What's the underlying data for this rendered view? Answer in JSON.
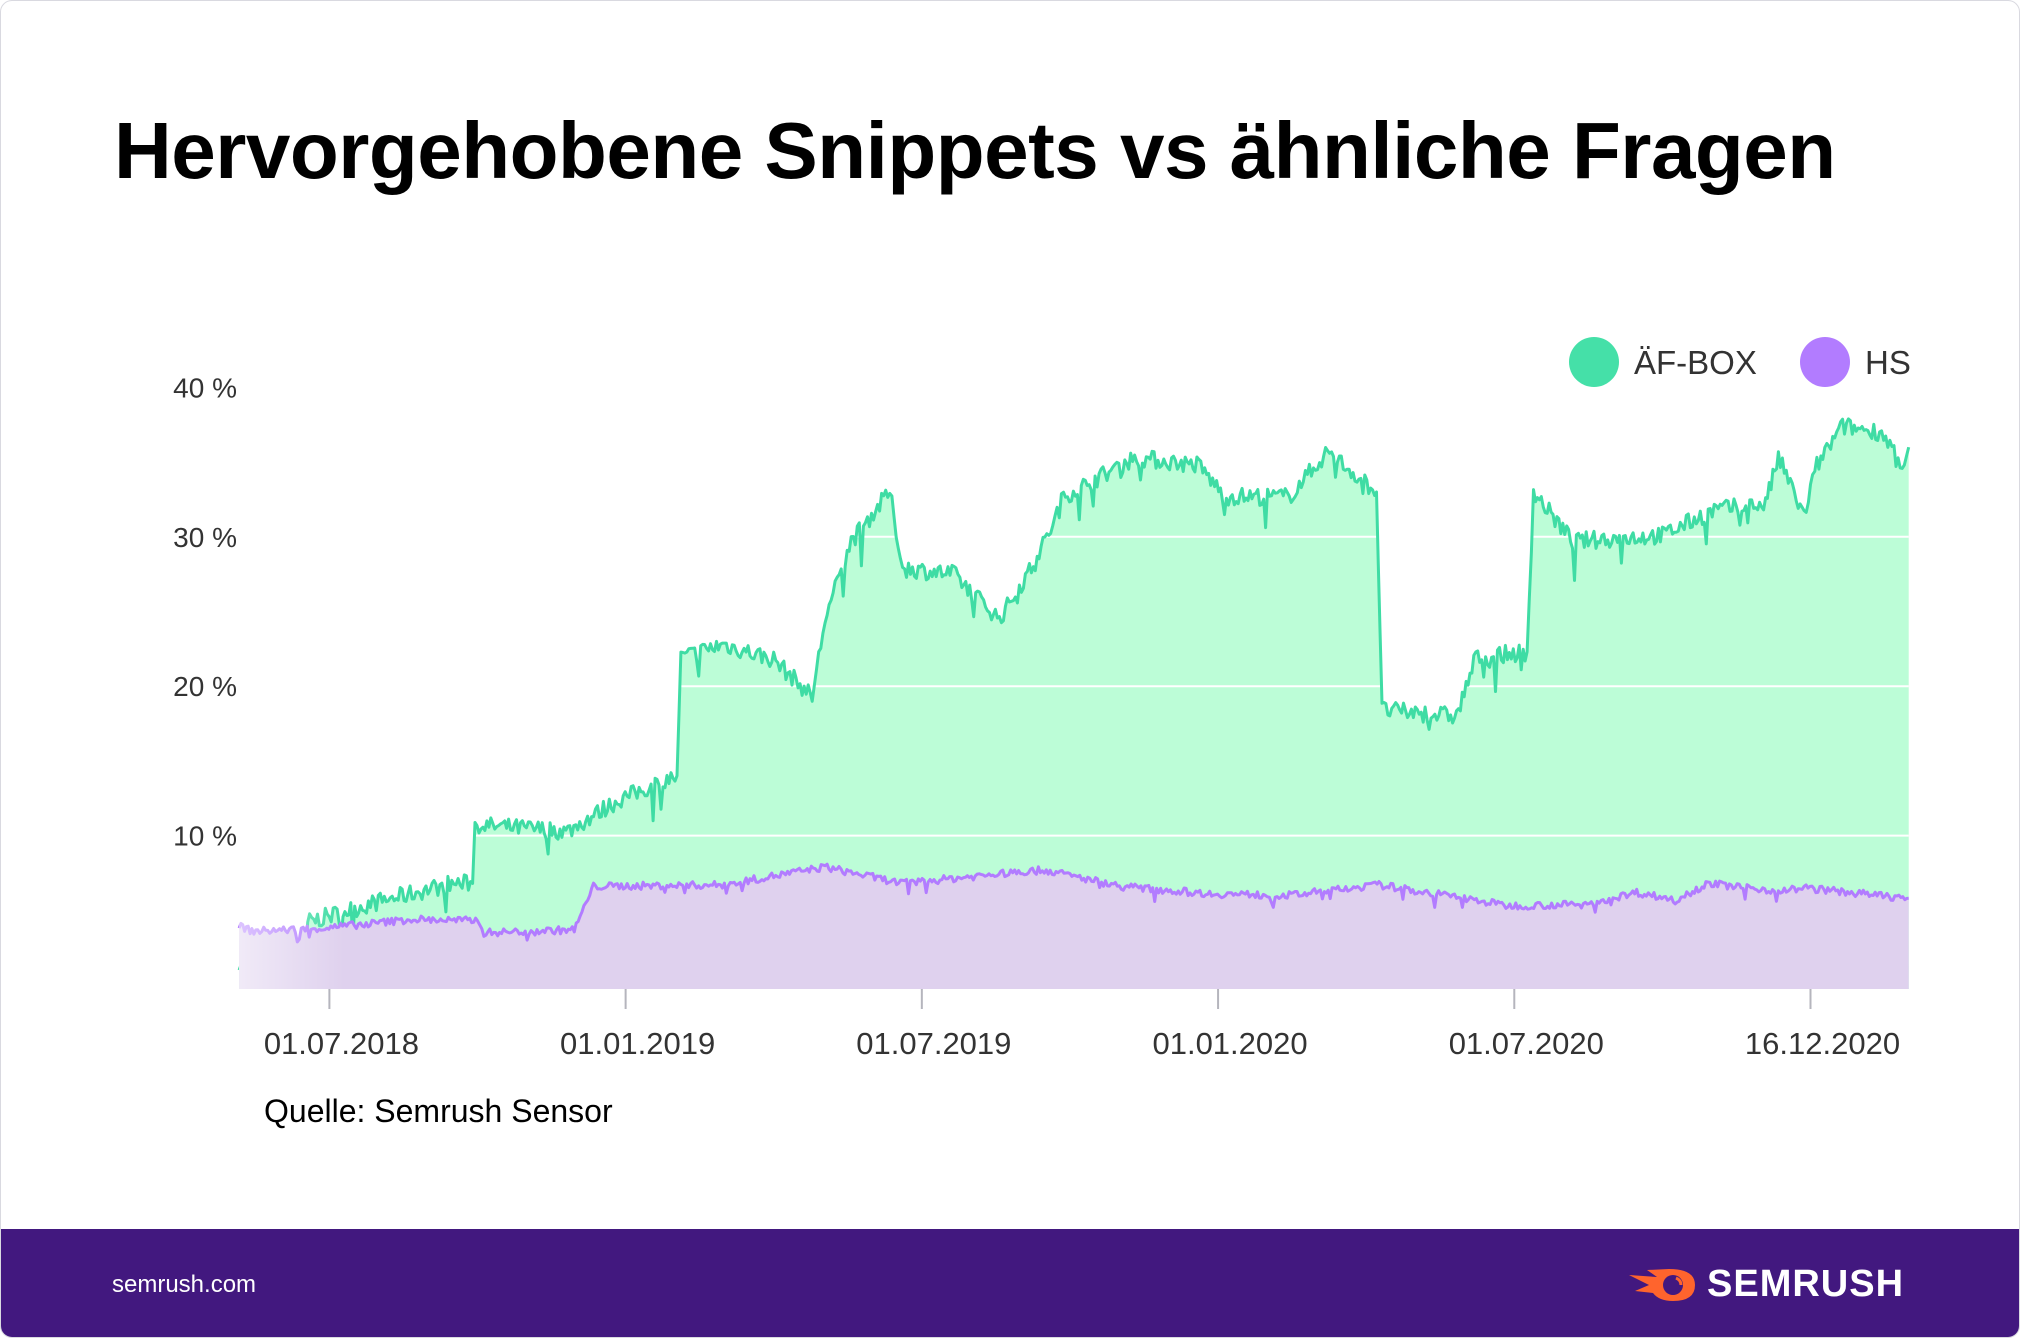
{
  "title": "Hervorgehobene Snippets vs ähnliche Fragen",
  "source": "Quelle: Semrush Sensor",
  "footer": {
    "site": "semrush.com",
    "brand": "SEMRUSH"
  },
  "colors": {
    "green_line": "#3fdca4",
    "green_fill": "#bcfdd7",
    "purple_line": "#b27cff",
    "purple_fill": "#dfd1ee",
    "footer": "#42187f",
    "logo_orange": "#ff642d"
  },
  "chart_data": {
    "type": "area",
    "title": "Hervorgehobene Snippets vs ähnliche Fragen",
    "x_unit": "months since 01.07.2018 (approx.)",
    "xticks": [
      {
        "x": 0,
        "label": "01.07.2018"
      },
      {
        "x": 6,
        "label": "01.01.2019"
      },
      {
        "x": 12,
        "label": "01.07.2019"
      },
      {
        "x": 18,
        "label": "01.01.2020"
      },
      {
        "x": 24,
        "label": "01.07.2020"
      },
      {
        "x": 30,
        "label": "16.12.2020"
      }
    ],
    "yticks": [
      {
        "y": 10,
        "label": "10 %"
      },
      {
        "y": 20,
        "label": "20 %"
      },
      {
        "y": 30,
        "label": "30 %"
      },
      {
        "y": 40,
        "label": "40 %"
      }
    ],
    "ylim": [
      0,
      40
    ],
    "xlim": [
      -1.83,
      31.99
    ],
    "grid": true,
    "legend_position": "top-right",
    "series": [
      {
        "name": "ÄF-BOX",
        "color": "#3fdca4",
        "points": [
          [
            -1.83,
            1.6
          ],
          [
            -0.5,
            1.6
          ],
          [
            -0.44,
            4.2
          ],
          [
            0.91,
            5.5
          ],
          [
            2.48,
            6.8
          ],
          [
            2.9,
            6.8
          ],
          [
            2.95,
            10.7
          ],
          [
            4.83,
            10.3
          ],
          [
            5.87,
            12.4
          ],
          [
            7.04,
            14
          ],
          [
            7.12,
            21.9
          ],
          [
            7.96,
            22.8
          ],
          [
            9.0,
            21.8
          ],
          [
            9.78,
            19.3
          ],
          [
            10.04,
            24.5
          ],
          [
            10.57,
            29.7
          ],
          [
            11.35,
            33
          ],
          [
            11.61,
            27.9
          ],
          [
            12.65,
            27.5
          ],
          [
            13.57,
            24.5
          ],
          [
            14.22,
            27.9
          ],
          [
            14.61,
            30.5
          ],
          [
            14.87,
            32.7
          ],
          [
            16.31,
            35.3
          ],
          [
            17.61,
            34.8
          ],
          [
            18.13,
            32.7
          ],
          [
            19.44,
            32.7
          ],
          [
            20.22,
            35.7
          ],
          [
            21.21,
            33
          ],
          [
            21.32,
            18.4
          ],
          [
            22.83,
            18.0
          ],
          [
            23.22,
            21.9
          ],
          [
            24.26,
            22.3
          ],
          [
            24.39,
            33
          ],
          [
            25.18,
            29.7
          ],
          [
            27.0,
            30.1
          ],
          [
            28.05,
            31.8
          ],
          [
            29.09,
            32.2
          ],
          [
            29.35,
            35.3
          ],
          [
            29.87,
            31.4
          ],
          [
            30.13,
            34.8
          ],
          [
            30.65,
            37.4
          ],
          [
            31.44,
            37.0
          ],
          [
            31.9,
            34.8
          ],
          [
            31.99,
            36
          ]
        ]
      },
      {
        "name": "HS",
        "color": "#b27cff",
        "points": [
          [
            -1.83,
            4.0
          ],
          [
            -1.57,
            3.6
          ],
          [
            -0.13,
            3.8
          ],
          [
            1.7,
            4.4
          ],
          [
            3.0,
            4.3
          ],
          [
            3.13,
            3.5
          ],
          [
            4.96,
            3.7
          ],
          [
            5.35,
            6.6
          ],
          [
            7.96,
            6.7
          ],
          [
            10.04,
            7.9
          ],
          [
            11.61,
            6.8
          ],
          [
            13.44,
            7.4
          ],
          [
            14.48,
            7.7
          ],
          [
            16.04,
            6.6
          ],
          [
            17.87,
            6.1
          ],
          [
            19.44,
            6.0
          ],
          [
            21.26,
            6.7
          ],
          [
            22.83,
            5.9
          ],
          [
            23.87,
            5.3
          ],
          [
            25.44,
            5.4
          ],
          [
            26.48,
            6.2
          ],
          [
            27.26,
            5.7
          ],
          [
            27.92,
            6.8
          ],
          [
            29.35,
            6.3
          ],
          [
            29.87,
            6.5
          ],
          [
            31.99,
            5.8
          ]
        ]
      }
    ]
  }
}
